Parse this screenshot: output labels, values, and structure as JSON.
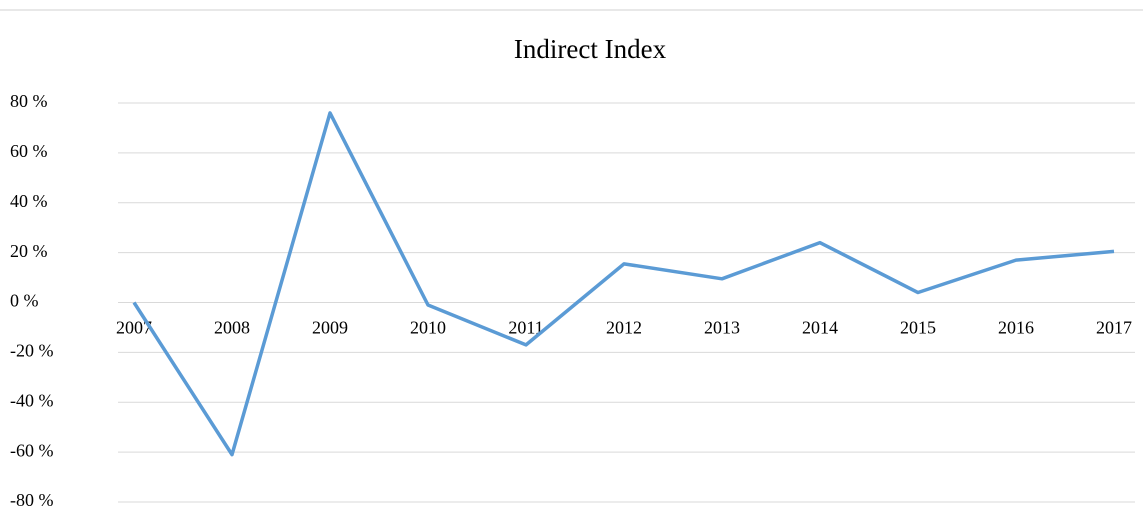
{
  "chart_data": {
    "type": "line",
    "title": "Indirect Index",
    "categories": [
      "2007",
      "2008",
      "2009",
      "2010",
      "2011",
      "2012",
      "2013",
      "2014",
      "2015",
      "2016",
      "2017"
    ],
    "series": [
      {
        "name": "Indirect Index",
        "color": "#5b9bd5",
        "values": [
          0,
          -61,
          76,
          -1,
          -17,
          15.5,
          9.5,
          24,
          4,
          17,
          20.5
        ]
      }
    ],
    "ylim": [
      -80,
      80
    ],
    "yticks": [
      {
        "value": -80,
        "label": "-80 %"
      },
      {
        "value": -60,
        "label": "-60 %"
      },
      {
        "value": -40,
        "label": "-40 %"
      },
      {
        "value": -20,
        "label": "-20 %"
      },
      {
        "value": 0,
        "label": "0 %"
      },
      {
        "value": 20,
        "label": "20 %"
      },
      {
        "value": 40,
        "label": "40 %"
      },
      {
        "value": 60,
        "label": "60 %"
      },
      {
        "value": 80,
        "label": "80 %"
      }
    ],
    "grid": true
  }
}
